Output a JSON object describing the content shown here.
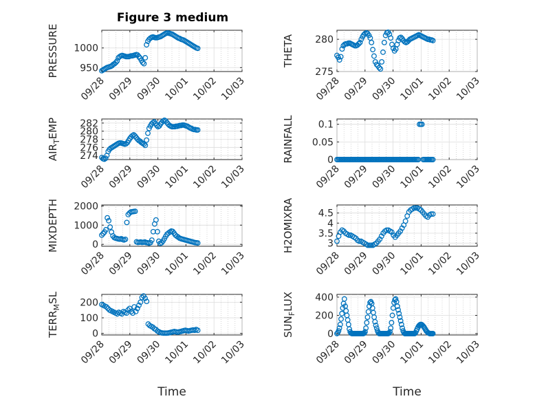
{
  "figure": {
    "title": "Figure 3 medium",
    "marker_color": "#0072bd"
  },
  "chart_data": [
    {
      "id": "pressure",
      "type": "scatter",
      "ylabel": "PRESSURE",
      "xlim": [
        0,
        5
      ],
      "ylim": [
        940,
        1045
      ],
      "yticks": [
        950,
        1000
      ],
      "xticklabels": [
        "09/28",
        "09/29",
        "09/30",
        "10/01",
        "10/02",
        "10/03"
      ],
      "xlabel": "",
      "y": [
        942,
        944,
        946,
        948,
        950,
        951,
        952,
        953,
        955,
        958,
        960,
        963,
        967,
        975,
        978,
        980,
        981,
        980,
        979,
        978,
        978,
        978,
        979,
        980,
        980,
        981,
        982,
        983,
        982,
        978,
        974,
        968,
        963,
        960,
        975,
        1008,
        1017,
        1022,
        1025,
        1027,
        1028,
        1027,
        1026,
        1026,
        1027,
        1028,
        1029,
        1031,
        1033,
        1035,
        1037,
        1038,
        1038,
        1037,
        1036,
        1035,
        1033,
        1031,
        1029,
        1027,
        1025,
        1024,
        1022,
        1021,
        1020,
        1018,
        1016,
        1014,
        1012,
        1010,
        1008,
        1006,
        1004,
        1002,
        1000,
        999
      ]
    },
    {
      "id": "theta",
      "type": "scatter",
      "ylabel": "THETA",
      "xlim": [
        0,
        5
      ],
      "ylim": [
        275,
        281.4
      ],
      "yticks": [
        275,
        280
      ],
      "xticklabels": [
        "09/28",
        "09/29",
        "09/30",
        "10/01",
        "10/02",
        "10/03"
      ],
      "xlabel": "",
      "y": [
        277.5,
        277.2,
        276.8,
        277.3,
        278.5,
        279,
        279.2,
        279.3,
        279.3,
        279.4,
        279.4,
        279.3,
        279.2,
        279.1,
        279,
        279,
        279.1,
        279.3,
        279.5,
        280,
        280.4,
        280.7,
        280.9,
        281,
        280.9,
        280.6,
        280.2,
        279.5,
        278.4,
        277.4,
        276.5,
        276.1,
        275.9,
        275.6,
        275.4,
        276.5,
        278,
        279.5,
        280.6,
        281,
        281.1,
        280.8,
        280.2,
        279.2,
        278.6,
        278.2,
        278.5,
        279.2,
        279.8,
        280.2,
        280.3,
        280.1,
        279.8,
        279.6,
        279.5,
        279.6,
        279.8,
        280,
        280.1,
        280.2,
        280.3,
        280.4,
        280.5,
        280.6,
        280.7,
        280.6,
        280.5,
        280.4,
        280.3,
        280.2,
        280.1,
        280,
        280,
        279.9,
        279.9,
        279.8
      ]
    },
    {
      "id": "air_temp",
      "type": "scatter",
      "ylabel": "AIR_TEMP",
      "xlim": [
        0,
        5
      ],
      "ylim": [
        273,
        283
      ],
      "yticks": [
        274,
        276,
        278,
        280,
        282
      ],
      "xticklabels": [
        "09/28",
        "09/29",
        "09/30",
        "10/01",
        "10/02",
        "10/03"
      ],
      "xlabel": "",
      "y": [
        273.5,
        273.2,
        273.1,
        273.3,
        274,
        275,
        275.5,
        275.8,
        276,
        276.2,
        276.4,
        276.6,
        276.8,
        277,
        277.1,
        277.1,
        277,
        276.9,
        276.8,
        276.9,
        277.2,
        277.7,
        278.2,
        278.6,
        278.9,
        279.1,
        278.8,
        278.4,
        278,
        277.7,
        277.5,
        277.2,
        277,
        276.8,
        276.5,
        277.8,
        279.5,
        280.7,
        281.3,
        281.8,
        282.1,
        282.3,
        281.9,
        281.4,
        281.1,
        281.3,
        281.8,
        282.2,
        282.5,
        282.7,
        282.5,
        282.1,
        281.7,
        281.4,
        281.2,
        281.1,
        281.1,
        281.1,
        281.2,
        281.2,
        281.3,
        281.4,
        281.4,
        281.5,
        281.5,
        281.4,
        281.3,
        281.2,
        281,
        280.8,
        280.7,
        280.5,
        280.4,
        280.4,
        280.3,
        280.3
      ]
    },
    {
      "id": "rainfall",
      "type": "scatter",
      "ylabel": "RAINFALL",
      "xlim": [
        0,
        5
      ],
      "ylim": [
        0,
        0.115
      ],
      "yticks": [
        0,
        0.05,
        0.1
      ],
      "xticklabels": [
        "09/28",
        "09/29",
        "09/30",
        "10/01",
        "10/02",
        "10/03"
      ],
      "xlabel": "",
      "y": [
        0,
        0,
        0,
        0,
        0,
        0,
        0,
        0,
        0,
        0,
        0,
        0,
        0,
        0,
        0,
        0,
        0,
        0,
        0,
        0,
        0,
        0,
        0,
        0,
        0,
        0,
        0,
        0,
        0,
        0,
        0,
        0,
        0,
        0,
        0,
        0,
        0,
        0,
        0,
        0,
        0,
        0,
        0,
        0,
        0,
        0,
        0,
        0,
        0,
        0,
        0,
        0,
        0,
        0,
        0,
        0,
        0,
        0,
        0,
        0,
        0,
        0,
        0,
        0,
        0,
        0,
        0,
        0,
        0.1,
        0.1,
        0.1,
        0,
        0,
        0,
        0,
        0,
        0,
        0,
        0,
        0
      ]
    },
    {
      "id": "mixdepth",
      "type": "scatter",
      "ylabel": "MIXDEPTH",
      "xlim": [
        0,
        5
      ],
      "ylim": [
        -100,
        2050
      ],
      "yticks": [
        0,
        1000,
        2000
      ],
      "xticklabels": [
        "09/28",
        "09/29",
        "09/30",
        "10/01",
        "10/02",
        "10/03"
      ],
      "xlabel": "",
      "y": [
        480,
        560,
        640,
        760,
        1380,
        1230,
        900,
        640,
        440,
        350,
        320,
        300,
        280,
        270,
        290,
        250,
        230,
        260,
        1140,
        1550,
        1630,
        1690,
        1700,
        1710,
        1720,
        130,
        100,
        110,
        120,
        100,
        110,
        120,
        90,
        80,
        60,
        90,
        220,
        660,
        1060,
        1270,
        660,
        160,
        50,
        80,
        170,
        290,
        420,
        530,
        590,
        640,
        690,
        670,
        580,
        480,
        420,
        370,
        320,
        290,
        270,
        250,
        230,
        210,
        190,
        170,
        150,
        130,
        110,
        90,
        80,
        70
      ]
    },
    {
      "id": "h2omixra",
      "type": "scatter",
      "ylabel": "H2OMIXRA",
      "xlim": [
        0,
        5
      ],
      "ylim": [
        2.85,
        4.9
      ],
      "yticks": [
        3,
        3.5,
        4,
        4.5
      ],
      "xticklabels": [
        "09/28",
        "09/29",
        "09/30",
        "10/01",
        "10/02",
        "10/03"
      ],
      "xlabel": "",
      "y": [
        3.1,
        3.35,
        3.55,
        3.65,
        3.6,
        3.5,
        3.45,
        3.4,
        3.4,
        3.35,
        3.3,
        3.25,
        3.15,
        3.1,
        3.1,
        3.05,
        3,
        2.95,
        2.9,
        2.9,
        2.9,
        2.9,
        2.95,
        3,
        3.1,
        3.2,
        3.35,
        3.5,
        3.6,
        3.65,
        3.65,
        3.6,
        3.55,
        3.4,
        3.3,
        3.4,
        3.5,
        3.6,
        3.75,
        3.9,
        4.1,
        4.35,
        4.55,
        4.65,
        4.7,
        4.75,
        4.75,
        4.75,
        4.7,
        4.65,
        4.55,
        4.45,
        4.35,
        4.3,
        4.4,
        4.45,
        4.45
      ]
    },
    {
      "id": "terr_msl",
      "type": "scatter",
      "ylabel": "TERR_MSL",
      "xlim": [
        0,
        5
      ],
      "ylim": [
        -10,
        250
      ],
      "yticks": [
        0,
        100,
        200
      ],
      "xticklabels": [
        "09/28",
        "09/29",
        "09/30",
        "10/01",
        "10/02",
        "10/03"
      ],
      "xlabel": "Time",
      "y": [
        185,
        180,
        175,
        170,
        160,
        150,
        145,
        140,
        135,
        130,
        125,
        135,
        130,
        125,
        140,
        135,
        130,
        150,
        160,
        140,
        130,
        170,
        140,
        160,
        180,
        200,
        230,
        240,
        225,
        205,
        60,
        50,
        45,
        40,
        30,
        25,
        15,
        10,
        5,
        3,
        2,
        2,
        2,
        3,
        5,
        8,
        10,
        12,
        10,
        8,
        10,
        12,
        15,
        18,
        20,
        18,
        15,
        18,
        20,
        22,
        20,
        25,
        20
      ]
    },
    {
      "id": "sun_flux",
      "type": "scatter",
      "ylabel": "SUN_FLUX",
      "xlim": [
        0,
        5
      ],
      "ylim": [
        -15,
        430
      ],
      "yticks": [
        0,
        200,
        400
      ],
      "xticklabels": [
        "09/28",
        "09/29",
        "09/30",
        "10/01",
        "10/02",
        "10/03"
      ],
      "xlabel": "Time",
      "y": [
        0,
        10,
        30,
        60,
        100,
        160,
        220,
        280,
        330,
        380,
        300,
        250,
        200,
        150,
        100,
        50,
        20,
        5,
        0,
        0,
        0,
        0,
        0,
        0,
        0,
        0,
        0,
        0,
        0,
        0,
        0,
        0,
        0,
        5,
        20,
        60,
        120,
        180,
        240,
        300,
        340,
        350,
        330,
        280,
        230,
        180,
        130,
        90,
        60,
        30,
        10,
        0,
        0,
        0,
        0,
        0,
        0,
        0,
        0,
        0,
        0,
        0,
        0,
        5,
        20,
        60,
        120,
        200,
        280,
        340,
        370,
        380,
        350,
        300,
        260,
        220,
        180,
        140,
        100,
        60,
        30,
        10,
        0,
        0,
        0,
        0,
        0,
        0,
        0,
        0,
        0,
        0,
        0,
        0,
        0,
        10,
        30,
        50,
        70,
        85,
        95,
        100,
        100,
        95,
        85,
        75,
        60,
        45,
        30,
        20,
        10,
        5,
        0,
        0,
        0,
        0,
        0
      ]
    }
  ]
}
